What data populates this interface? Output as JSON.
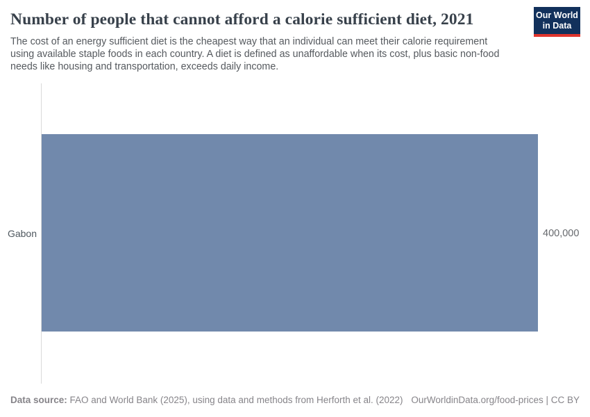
{
  "header": {
    "title": "Number of people that cannot afford a calorie sufficient diet, 2021",
    "subtitle": "The cost of an energy sufficient diet is the cheapest way that an individual can meet their calorie requirement using available staple foods in each country. A diet is defined as unaffordable when its cost, plus basic non-food needs like housing and transportation, exceeds daily income.",
    "logo": {
      "line1": "Our World",
      "line2": "in Data"
    }
  },
  "chart_data": {
    "type": "bar",
    "orientation": "horizontal",
    "title": "Number of people that cannot afford a calorie sufficient diet, 2021",
    "categories": [
      "Gabon"
    ],
    "values": [
      400000
    ],
    "value_labels": [
      "400,000"
    ],
    "xlabel": "",
    "ylabel": "",
    "xlim": [
      0,
      400000
    ],
    "grid": false,
    "legend": "none",
    "bar_color": "#7189ac"
  },
  "footer": {
    "source_label": "Data source:",
    "source_text": " FAO and World Bank (2025), using data and methods from Herforth et al. (2022)",
    "link_text": "OurWorldinData.org/food-prices | CC BY"
  },
  "colors": {
    "bar": "#7189ac",
    "logo_background": "#12315c",
    "logo_accent_red": "#e0352d",
    "title_text": "#38414b",
    "subtitle_text": "#55595e",
    "axis_line": "#d9d9d9",
    "footer_text": "#868489"
  }
}
